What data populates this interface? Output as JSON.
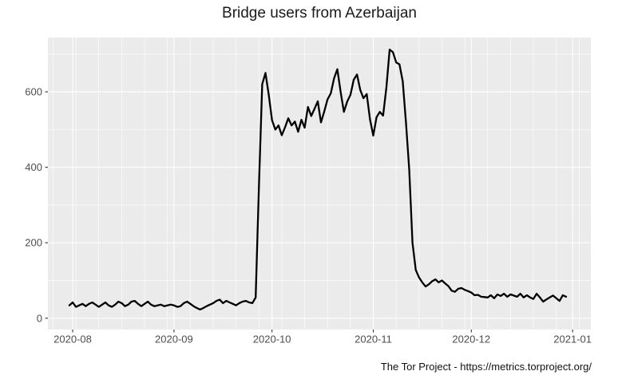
{
  "title": "Bridge users from Azerbaijan",
  "footer": "The Tor Project - https://metrics.torproject.org/",
  "chart_data": {
    "type": "line",
    "title": "Bridge users from Azerbaijan",
    "xlabel": "",
    "ylabel": "",
    "legend": "none",
    "grid": "major-and-minor",
    "x_start": "2020-07-31",
    "x_step": "1 day",
    "values": [
      34,
      42,
      30,
      34,
      38,
      32,
      38,
      42,
      36,
      30,
      36,
      42,
      34,
      30,
      36,
      44,
      40,
      32,
      36,
      44,
      46,
      38,
      32,
      38,
      44,
      36,
      32,
      34,
      36,
      32,
      34,
      36,
      34,
      30,
      32,
      40,
      44,
      38,
      32,
      27,
      23,
      27,
      32,
      36,
      40,
      46,
      49,
      40,
      46,
      42,
      38,
      34,
      40,
      44,
      46,
      42,
      40,
      55,
      350,
      620,
      650,
      592,
      525,
      500,
      511,
      485,
      506,
      530,
      511,
      521,
      494,
      526,
      505,
      560,
      536,
      555,
      575,
      519,
      548,
      580,
      596,
      636,
      660,
      600,
      547,
      574,
      592,
      632,
      646,
      605,
      583,
      594,
      527,
      484,
      533,
      547,
      537,
      611,
      712,
      705,
      678,
      673,
      628,
      520,
      395,
      200,
      128,
      108,
      95,
      84,
      90,
      98,
      103,
      95,
      100,
      92,
      85,
      73,
      70,
      78,
      80,
      75,
      72,
      68,
      61,
      62,
      57,
      56,
      55,
      61,
      53,
      63,
      59,
      65,
      57,
      63,
      60,
      57,
      65,
      55,
      61,
      55,
      51,
      65,
      55,
      44,
      50,
      55,
      60,
      53,
      46,
      61,
      57
    ],
    "xlim": [
      "2020-07-24T10:00:00Z",
      "2021-01-06T14:00:00Z"
    ],
    "ylim": [
      -30,
      744
    ],
    "x_axis": {
      "ticks": [
        {
          "date": "2020-08-01",
          "label": "2020-08"
        },
        {
          "date": "2020-09-01",
          "label": "2020-09"
        },
        {
          "date": "2020-10-01",
          "label": "2020-10"
        },
        {
          "date": "2020-11-01",
          "label": "2020-11"
        },
        {
          "date": "2020-12-01",
          "label": "2020-12"
        },
        {
          "date": "2021-01-01",
          "label": "2021-01"
        }
      ],
      "minor_anchor": "2020-07-26",
      "minor_step_days": 7
    },
    "y_axis": {
      "ticks": [
        {
          "value": 0,
          "label": "0"
        },
        {
          "value": 200,
          "label": "200"
        },
        {
          "value": 400,
          "label": "400"
        },
        {
          "value": 600,
          "label": "600"
        }
      ],
      "minor": [
        100,
        300,
        500,
        700
      ]
    },
    "colors": {
      "background": "#ffffff",
      "panel_bg": "#ebebeb",
      "grid": "#ffffff",
      "line": "#000000",
      "axis_text": "#4d4d4d",
      "tick": "#333333",
      "title": "#1a1a1a"
    }
  }
}
